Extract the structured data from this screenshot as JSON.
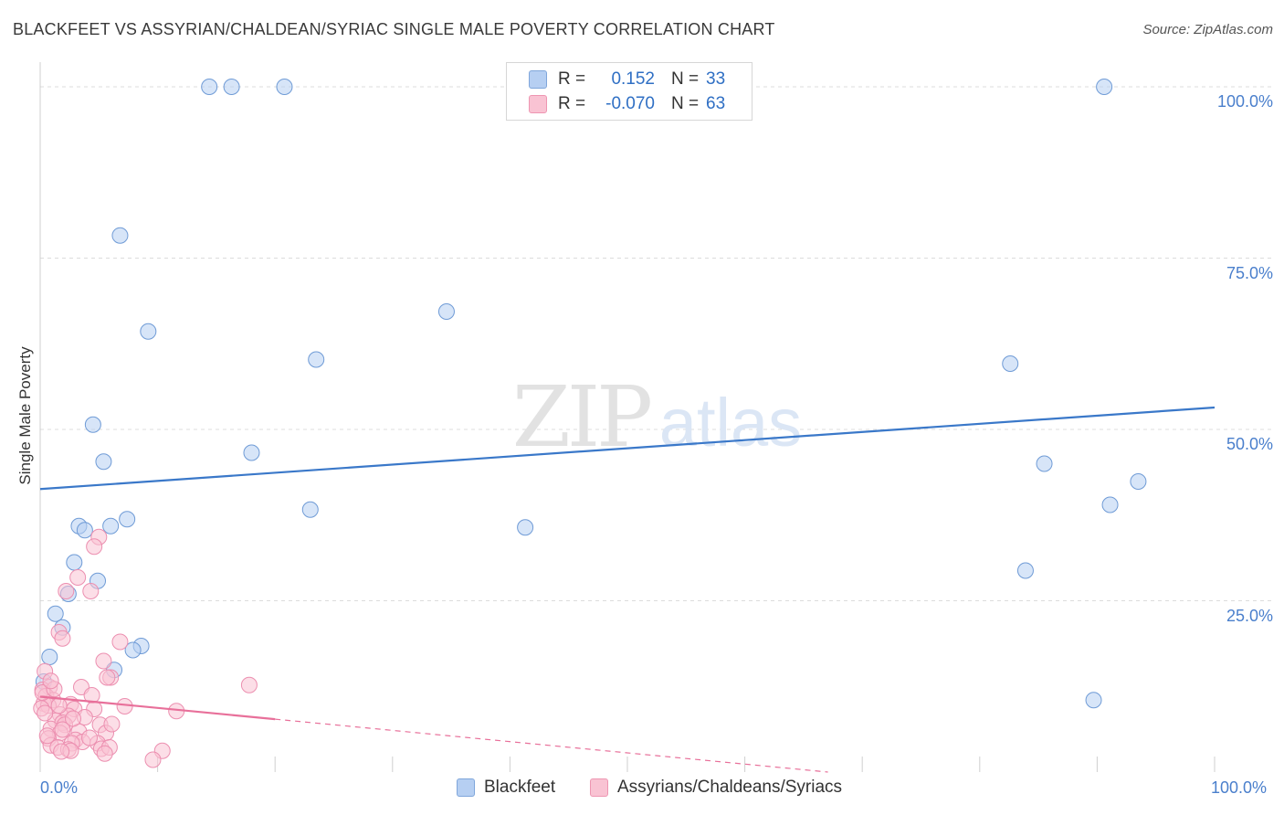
{
  "title": "BLACKFEET VS ASSYRIAN/CHALDEAN/SYRIAC SINGLE MALE POVERTY CORRELATION CHART",
  "source": "Source: ZipAtlas.com",
  "watermark": {
    "zip": "ZIP",
    "atlas": "atlas"
  },
  "legend": {
    "r_label": "R =",
    "n_label": "N =",
    "blue": {
      "r": "0.152",
      "n": "33"
    },
    "pink": {
      "r": "-0.070",
      "n": "63"
    }
  },
  "colors": {
    "blue": "#3a78c9",
    "pink": "#e8709a",
    "blue_fill": "#b6cff2",
    "pink_fill": "#f9c3d3",
    "tick": "#4a7fcc",
    "grid": "#dcdcdc"
  },
  "chart_data": {
    "type": "scatter",
    "title": "BLACKFEET VS ASSYRIAN/CHALDEAN/SYRIAC SINGLE MALE POVERTY CORRELATION CHART",
    "xlabel": "",
    "ylabel": "Single Male Poverty",
    "xlim": [
      0,
      100
    ],
    "ylim": [
      0,
      102
    ],
    "x_tick_labels": [
      "0.0%",
      "100.0%"
    ],
    "y_tick_labels": [
      "25.0%",
      "50.0%",
      "75.0%",
      "100.0%"
    ],
    "y_ticks": [
      25,
      50,
      75,
      100
    ],
    "legend_position": "bottom-center",
    "series": [
      {
        "name": "Blackfeet",
        "color": "#3a78c9",
        "trend": {
          "x": [
            0,
            100
          ],
          "y": [
            41.3,
            53.2
          ]
        },
        "points": [
          [
            14.4,
            100
          ],
          [
            16.3,
            100
          ],
          [
            20.8,
            100
          ],
          [
            90.6,
            100
          ],
          [
            6.8,
            78.3
          ],
          [
            9.2,
            64.3
          ],
          [
            34.6,
            67.2
          ],
          [
            23.5,
            60.2
          ],
          [
            82.6,
            59.6
          ],
          [
            4.5,
            50.7
          ],
          [
            5.4,
            45.3
          ],
          [
            18.0,
            46.6
          ],
          [
            23.0,
            38.3
          ],
          [
            85.5,
            45.0
          ],
          [
            93.5,
            42.4
          ],
          [
            91.1,
            39.0
          ],
          [
            7.4,
            36.9
          ],
          [
            3.3,
            35.9
          ],
          [
            3.8,
            35.3
          ],
          [
            6.0,
            35.9
          ],
          [
            41.3,
            35.7
          ],
          [
            2.9,
            30.6
          ],
          [
            4.9,
            27.9
          ],
          [
            2.4,
            26.0
          ],
          [
            83.9,
            29.4
          ],
          [
            1.3,
            23.1
          ],
          [
            1.9,
            21.1
          ],
          [
            8.6,
            18.4
          ],
          [
            7.9,
            17.8
          ],
          [
            0.8,
            16.8
          ],
          [
            6.3,
            14.9
          ],
          [
            89.7,
            10.5
          ],
          [
            0.3,
            13.2
          ]
        ]
      },
      {
        "name": "Assyrians/Chaldeans/Syriacs",
        "color": "#e8709a",
        "trend": {
          "x": [
            0,
            100
          ],
          "y": [
            11.0,
            -5.4
          ]
        },
        "trend_solid_until": 20,
        "points": [
          [
            5.0,
            34.3
          ],
          [
            4.6,
            32.9
          ],
          [
            3.2,
            28.4
          ],
          [
            2.2,
            26.4
          ],
          [
            4.3,
            26.4
          ],
          [
            1.6,
            20.4
          ],
          [
            1.9,
            19.5
          ],
          [
            6.8,
            19.0
          ],
          [
            5.4,
            16.2
          ],
          [
            6.0,
            13.8
          ],
          [
            5.7,
            13.8
          ],
          [
            0.4,
            14.7
          ],
          [
            0.8,
            12.4
          ],
          [
            3.5,
            12.4
          ],
          [
            0.2,
            12.0
          ],
          [
            17.8,
            12.7
          ],
          [
            4.4,
            11.2
          ],
          [
            0.5,
            11.1
          ],
          [
            1.1,
            10.5
          ],
          [
            0.3,
            10.0
          ],
          [
            0.7,
            9.7
          ],
          [
            2.6,
            9.9
          ],
          [
            7.2,
            9.6
          ],
          [
            0.1,
            9.3
          ],
          [
            2.9,
            9.2
          ],
          [
            4.6,
            9.2
          ],
          [
            11.6,
            8.9
          ],
          [
            1.7,
            8.4
          ],
          [
            2.4,
            8.2
          ],
          [
            1.3,
            7.5
          ],
          [
            1.9,
            7.2
          ],
          [
            2.1,
            6.9
          ],
          [
            5.1,
            6.9
          ],
          [
            0.9,
            6.3
          ],
          [
            1.7,
            5.7
          ],
          [
            3.3,
            5.9
          ],
          [
            5.6,
            5.7
          ],
          [
            0.7,
            4.9
          ],
          [
            3.0,
            4.7
          ],
          [
            3.6,
            4.4
          ],
          [
            2.7,
            4.2
          ],
          [
            4.9,
            4.2
          ],
          [
            0.9,
            3.9
          ],
          [
            1.5,
            3.6
          ],
          [
            2.4,
            3.3
          ],
          [
            5.2,
            3.4
          ],
          [
            5.9,
            3.6
          ],
          [
            2.6,
            3.1
          ],
          [
            1.8,
            3.0
          ],
          [
            5.5,
            2.7
          ],
          [
            10.4,
            3.1
          ],
          [
            9.6,
            1.8
          ],
          [
            0.2,
            11.6
          ],
          [
            1.2,
            12.1
          ],
          [
            0.4,
            8.6
          ],
          [
            1.6,
            9.7
          ],
          [
            3.8,
            8.0
          ],
          [
            6.1,
            7.0
          ],
          [
            0.6,
            5.3
          ],
          [
            1.9,
            6.2
          ],
          [
            4.2,
            5.0
          ],
          [
            2.8,
            7.8
          ],
          [
            0.9,
            13.3
          ]
        ]
      }
    ]
  }
}
